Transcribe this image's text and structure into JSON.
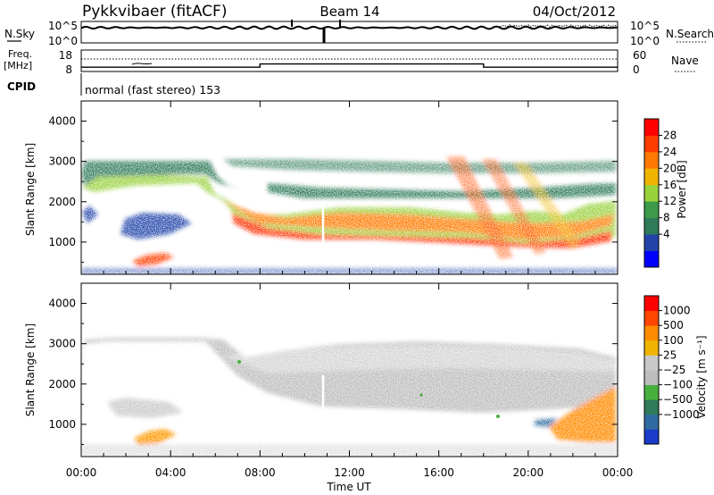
{
  "header": {
    "title": "Pykkvibaer (fitACF)",
    "beam": "Beam 14",
    "date": "04/Oct/2012"
  },
  "noise_panel": {
    "left_label": "N.Sky",
    "right_label": "N.Search",
    "left_ticks": [
      "10^5",
      "10^0"
    ],
    "right_ticks": [
      "10^5",
      "10^0"
    ]
  },
  "freq_panel": {
    "left_label": "Freq.",
    "left_unit": "[MHz]",
    "right_label": "Nave",
    "left_ticks": [
      "18",
      "8"
    ],
    "right_ticks": [
      "60",
      "0"
    ],
    "freq_steps": [
      {
        "t": 0,
        "v": 10
      },
      {
        "t": 8,
        "v": 10
      },
      {
        "t": 8,
        "v": 11.5
      },
      {
        "t": 18,
        "v": 11.5
      },
      {
        "t": 18,
        "v": 10
      },
      {
        "t": 24,
        "v": 10
      }
    ]
  },
  "cpid": {
    "label": "CPID",
    "value": "normal (fast stereo) 153"
  },
  "chart_data": [
    {
      "type": "heatmap",
      "name": "power",
      "ylabel": "Slant Range [km]",
      "xlim": [
        0,
        24
      ],
      "ylim": [
        200,
        4500
      ],
      "yticks": [
        1000,
        2000,
        3000,
        4000
      ],
      "colorbar": {
        "label": "Power [dB]",
        "ticks": [
          "28",
          "24",
          "20",
          "16",
          "12",
          "8",
          "4"
        ],
        "colors": [
          "#0000ff",
          "#2244aa",
          "#2e7a5a",
          "#3c9a4a",
          "#9ad23c",
          "#f0b400",
          "#ff7a00",
          "#ff3c00",
          "#ff0000"
        ]
      }
    },
    {
      "type": "heatmap",
      "name": "velocity",
      "ylabel": "Slant Range [km]",
      "xlabel": "Time UT",
      "xlim": [
        0,
        24
      ],
      "ylim": [
        200,
        4500
      ],
      "yticks": [
        1000,
        2000,
        3000,
        4000
      ],
      "xticks": [
        "00:00",
        "04:00",
        "08:00",
        "12:00",
        "16:00",
        "20:00",
        "00:00"
      ],
      "colorbar": {
        "label": "Velocity [m s⁻¹]",
        "ticks": [
          "1000",
          "500",
          "100",
          "25",
          "−25",
          "−100",
          "−500",
          "−1000"
        ],
        "colors": [
          "#1a3cc8",
          "#2f6aa0",
          "#2e7a5a",
          "#46b03c",
          "#bdbdbd",
          "#c8c8c8",
          "#f0b400",
          "#ff8c00",
          "#ff4600",
          "#ff0000"
        ]
      }
    }
  ]
}
